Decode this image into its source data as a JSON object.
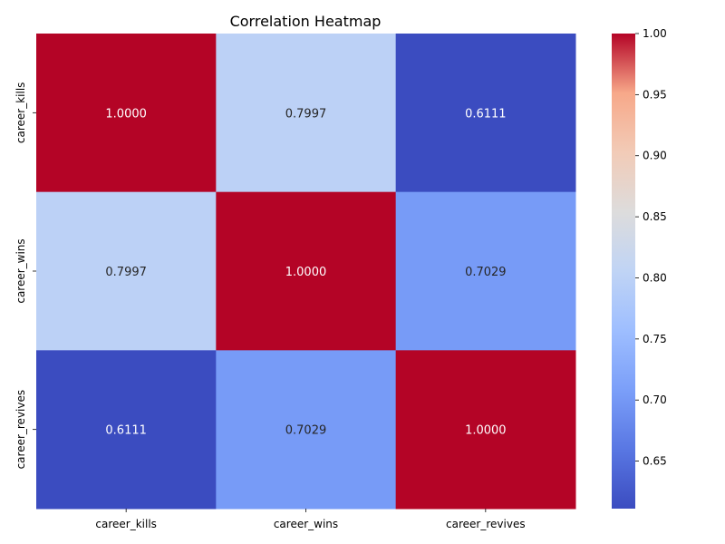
{
  "chart_data": {
    "type": "heatmap",
    "title": "Correlation Heatmap",
    "row_labels": [
      "career_kills",
      "career_wins",
      "career_revives"
    ],
    "col_labels": [
      "career_kills",
      "career_wins",
      "career_revives"
    ],
    "values": [
      [
        1.0,
        0.7997,
        0.6111
      ],
      [
        0.7997,
        1.0,
        0.7029
      ],
      [
        0.6111,
        0.7029,
        1.0
      ]
    ],
    "cell_labels": [
      [
        "1.0000",
        "0.7997",
        "0.6111"
      ],
      [
        "0.7997",
        "1.0000",
        "0.7029"
      ],
      [
        "0.6111",
        "0.7029",
        "1.0000"
      ]
    ],
    "colormap": "coolwarm",
    "colorbar": {
      "vmin": 0.6111,
      "vmax": 1.0,
      "ticks": [
        0.65,
        0.7,
        0.75,
        0.8,
        0.85,
        0.9,
        0.95,
        1.0
      ],
      "tick_labels": [
        "0.65",
        "0.70",
        "0.75",
        "0.80",
        "0.85",
        "0.90",
        "0.95",
        "1.00"
      ]
    },
    "xlabel": "",
    "ylabel": "",
    "grid": false
  }
}
